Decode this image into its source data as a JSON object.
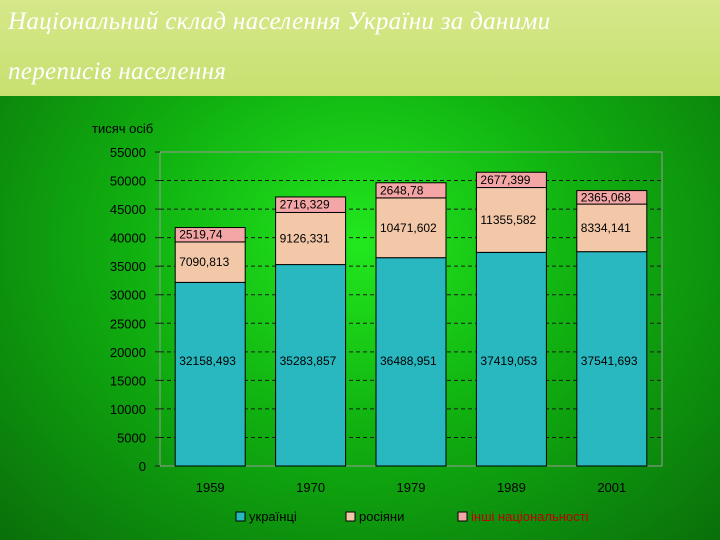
{
  "slide": {
    "title_line1": "Національний склад населення України за даними",
    "title_line2": "переписів населення"
  },
  "chart_data": {
    "type": "bar",
    "stacked": true,
    "ylabel": "тисяч осіб",
    "ylim": [
      0,
      55000
    ],
    "yticks": [
      0,
      5000,
      10000,
      15000,
      20000,
      25000,
      30000,
      35000,
      40000,
      45000,
      50000,
      55000
    ],
    "ytick_labels": [
      "0",
      "5000",
      "10000",
      "15000",
      "20000",
      "25000",
      "30000",
      "35000",
      "40000",
      "45000",
      "50000",
      "55000"
    ],
    "categories": [
      "1959",
      "1970",
      "1979",
      "1989",
      "2001"
    ],
    "grid": true,
    "legend_position": "bottom",
    "series": [
      {
        "name": "українці",
        "color": "#2ab8c0",
        "values": [
          32158.493,
          35283.857,
          36488.951,
          37419.053,
          37541.693
        ],
        "labels": [
          "32158,493",
          "35283,857",
          "36488,951",
          "37419,053",
          "37541,693"
        ]
      },
      {
        "name": "росіяни",
        "color": "#f2c8a8",
        "values": [
          7090.813,
          9126.331,
          10471.602,
          11355.582,
          8334.141
        ],
        "labels": [
          "7090,813",
          "9126,331",
          "10471,602",
          "11355,582",
          "8334,141"
        ]
      },
      {
        "name": "інші національності",
        "color": "#f4a6a6",
        "values": [
          2519.74,
          2716.329,
          2648.78,
          2677.399,
          2365.068
        ],
        "labels": [
          "2519,74",
          "2716,329",
          "2648,78",
          "2677,399",
          "2365,068"
        ]
      }
    ]
  }
}
